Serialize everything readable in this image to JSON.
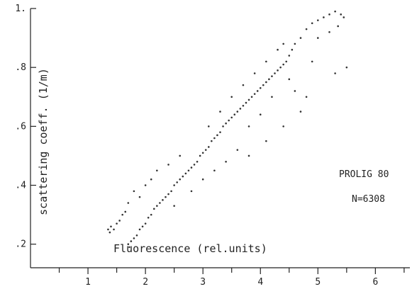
{
  "chart_data": {
    "type": "scatter",
    "title": "",
    "xlabel": "Fluorescence (rel.units)",
    "ylabel": "scattering coeff. (1/m)",
    "xlim": [
      0,
      6.6
    ],
    "ylim": [
      0.12,
      1.0
    ],
    "xticks": [
      {
        "value": 1,
        "label": "1"
      },
      {
        "value": 2,
        "label": "2"
      },
      {
        "value": 3,
        "label": "3"
      },
      {
        "value": 4,
        "label": "4"
      },
      {
        "value": 5,
        "label": "5"
      },
      {
        "value": 6,
        "label": "6"
      }
    ],
    "yticks": [
      {
        "value": 0.2,
        "label": ".2"
      },
      {
        "value": 0.4,
        "label": ".4"
      },
      {
        "value": 0.6,
        "label": ".6"
      },
      {
        "value": 0.8,
        "label": ".8"
      },
      {
        "value": 1.0,
        "label": "1."
      }
    ],
    "annotations": [
      "PROLIG 80",
      "N=6308"
    ],
    "grid": false,
    "series": [
      {
        "points": [
          [
            1.35,
            0.25
          ],
          [
            1.38,
            0.24
          ],
          [
            1.4,
            0.26
          ],
          [
            1.45,
            0.25
          ],
          [
            1.5,
            0.27
          ],
          [
            1.55,
            0.28
          ],
          [
            1.6,
            0.3
          ],
          [
            1.65,
            0.31
          ],
          [
            1.7,
            0.2
          ],
          [
            1.72,
            0.19
          ],
          [
            1.75,
            0.21
          ],
          [
            1.8,
            0.22
          ],
          [
            1.85,
            0.23
          ],
          [
            1.9,
            0.25
          ],
          [
            1.95,
            0.26
          ],
          [
            2.0,
            0.27
          ],
          [
            2.05,
            0.29
          ],
          [
            2.1,
            0.3
          ],
          [
            2.15,
            0.32
          ],
          [
            2.2,
            0.33
          ],
          [
            2.25,
            0.34
          ],
          [
            2.3,
            0.35
          ],
          [
            2.35,
            0.36
          ],
          [
            2.4,
            0.37
          ],
          [
            2.45,
            0.38
          ],
          [
            2.5,
            0.4
          ],
          [
            2.55,
            0.41
          ],
          [
            2.6,
            0.42
          ],
          [
            2.65,
            0.43
          ],
          [
            2.7,
            0.44
          ],
          [
            2.75,
            0.45
          ],
          [
            2.8,
            0.46
          ],
          [
            2.85,
            0.47
          ],
          [
            2.9,
            0.48
          ],
          [
            2.95,
            0.5
          ],
          [
            3.0,
            0.51
          ],
          [
            3.05,
            0.52
          ],
          [
            3.1,
            0.53
          ],
          [
            3.15,
            0.55
          ],
          [
            3.2,
            0.56
          ],
          [
            3.25,
            0.57
          ],
          [
            3.3,
            0.58
          ],
          [
            3.35,
            0.6
          ],
          [
            3.4,
            0.61
          ],
          [
            3.45,
            0.62
          ],
          [
            3.5,
            0.63
          ],
          [
            3.55,
            0.64
          ],
          [
            3.6,
            0.65
          ],
          [
            3.65,
            0.66
          ],
          [
            3.7,
            0.67
          ],
          [
            3.75,
            0.68
          ],
          [
            3.8,
            0.69
          ],
          [
            3.85,
            0.7
          ],
          [
            3.9,
            0.71
          ],
          [
            3.95,
            0.72
          ],
          [
            4.0,
            0.73
          ],
          [
            4.05,
            0.74
          ],
          [
            4.1,
            0.75
          ],
          [
            4.15,
            0.76
          ],
          [
            4.2,
            0.77
          ],
          [
            4.25,
            0.78
          ],
          [
            4.3,
            0.79
          ],
          [
            4.35,
            0.8
          ],
          [
            4.4,
            0.81
          ],
          [
            4.45,
            0.82
          ],
          [
            4.5,
            0.84
          ],
          [
            4.55,
            0.86
          ],
          [
            4.6,
            0.88
          ],
          [
            4.7,
            0.9
          ],
          [
            4.8,
            0.93
          ],
          [
            4.9,
            0.95
          ],
          [
            5.0,
            0.96
          ],
          [
            5.1,
            0.97
          ],
          [
            5.2,
            0.98
          ],
          [
            5.3,
            0.99
          ],
          [
            5.4,
            0.98
          ],
          [
            5.45,
            0.97
          ],
          [
            5.0,
            0.9
          ],
          [
            5.2,
            0.92
          ],
          [
            5.35,
            0.94
          ],
          [
            4.6,
            0.72
          ],
          [
            4.8,
            0.7
          ],
          [
            5.3,
            0.78
          ],
          [
            5.5,
            0.8
          ],
          [
            4.9,
            0.82
          ],
          [
            4.1,
            0.55
          ],
          [
            3.8,
            0.5
          ],
          [
            1.8,
            0.38
          ],
          [
            2.0,
            0.4
          ],
          [
            2.1,
            0.42
          ],
          [
            2.2,
            0.45
          ],
          [
            1.9,
            0.36
          ],
          [
            1.7,
            0.34
          ],
          [
            2.4,
            0.47
          ],
          [
            2.6,
            0.5
          ],
          [
            3.0,
            0.42
          ],
          [
            3.2,
            0.45
          ],
          [
            3.4,
            0.48
          ],
          [
            3.6,
            0.52
          ],
          [
            2.8,
            0.38
          ],
          [
            2.5,
            0.33
          ],
          [
            3.1,
            0.6
          ],
          [
            3.3,
            0.65
          ],
          [
            3.5,
            0.7
          ],
          [
            3.7,
            0.74
          ],
          [
            3.9,
            0.78
          ],
          [
            4.1,
            0.82
          ],
          [
            4.3,
            0.86
          ],
          [
            4.4,
            0.88
          ],
          [
            4.2,
            0.7
          ],
          [
            4.0,
            0.64
          ],
          [
            3.8,
            0.6
          ],
          [
            4.5,
            0.76
          ],
          [
            4.4,
            0.6
          ],
          [
            4.7,
            0.65
          ]
        ]
      }
    ]
  }
}
